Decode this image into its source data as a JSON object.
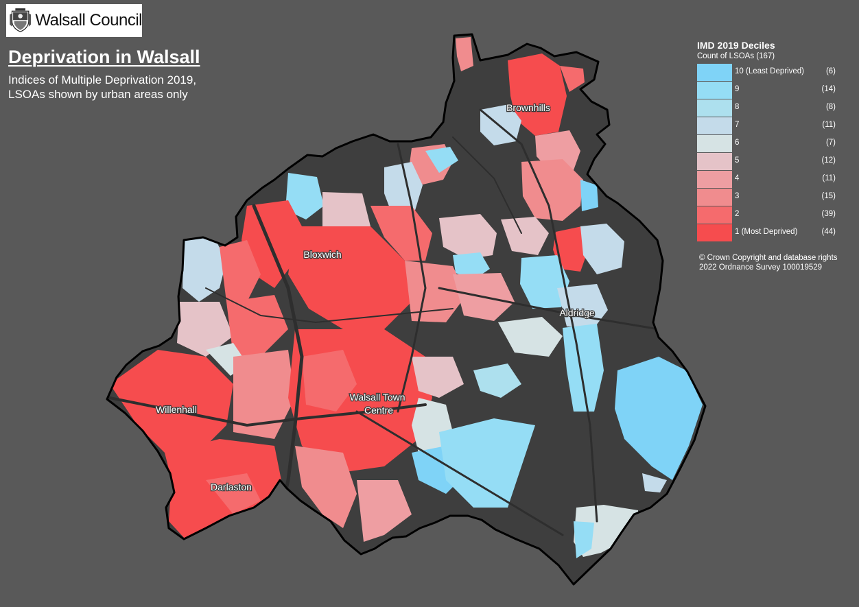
{
  "logo": {
    "text": "Walsall Council",
    "crest": "council-crest-icon"
  },
  "title": "Deprivation in Walsall",
  "subtitle": "Indices of Multiple Deprivation 2019, LSOAs shown by urban areas only",
  "legend": {
    "title": "IMD 2019 Deciles",
    "subtitle": "Count of LSOAs (167)",
    "items": [
      {
        "label": "10 (Least Deprived)",
        "count": "(6)",
        "color": "#7fd3f7"
      },
      {
        "label": "9",
        "count": "(14)",
        "color": "#95ddf5"
      },
      {
        "label": "8",
        "count": "(8)",
        "color": "#ade0ee"
      },
      {
        "label": "7",
        "count": "(11)",
        "color": "#c4dbea"
      },
      {
        "label": "6",
        "count": "(7)",
        "color": "#d6e3e4"
      },
      {
        "label": "5",
        "count": "(12)",
        "color": "#e5c3c8"
      },
      {
        "label": "4",
        "count": "(11)",
        "color": "#ee9ea2"
      },
      {
        "label": "3",
        "count": "(15)",
        "color": "#f08c8e"
      },
      {
        "label": "2",
        "count": "(39)",
        "color": "#f56b6d"
      },
      {
        "label": "1 (Most Deprived)",
        "count": "(44)",
        "color": "#f64c4e"
      }
    ]
  },
  "copyright": "© Crown Copyright and database rights 2022 Ordnance Survey 100019529",
  "places": [
    "Brownhills",
    "Bloxwich",
    "Aldridge",
    "Walsall Town Centre",
    "Willenhall",
    "Darlaston"
  ],
  "colors": {
    "background": "#595959",
    "land": "#3e3e3e",
    "boundary": "#000000"
  }
}
